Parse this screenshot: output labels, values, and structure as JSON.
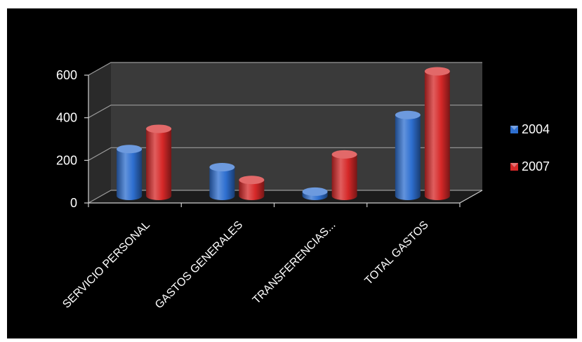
{
  "chart_data": {
    "type": "bar",
    "style": "3d-cylinder",
    "categories": [
      "SERVICIO PERSONAL",
      "GASTOS GENERALES",
      "TRANSFERENCIAS...",
      "TOTAL GASTOS"
    ],
    "series": [
      {
        "name": "2004",
        "color": "#2e6fd0",
        "values": [
          220,
          135,
          20,
          380
        ]
      },
      {
        "name": "2007",
        "color": "#d62828",
        "values": [
          315,
          75,
          195,
          585
        ]
      }
    ],
    "title": "",
    "xlabel": "",
    "ylabel": "",
    "ylim": [
      0,
      600
    ],
    "yticks": [
      "0",
      "200",
      "400",
      "600"
    ],
    "grid": true,
    "legend": "right",
    "background": "#000000"
  }
}
